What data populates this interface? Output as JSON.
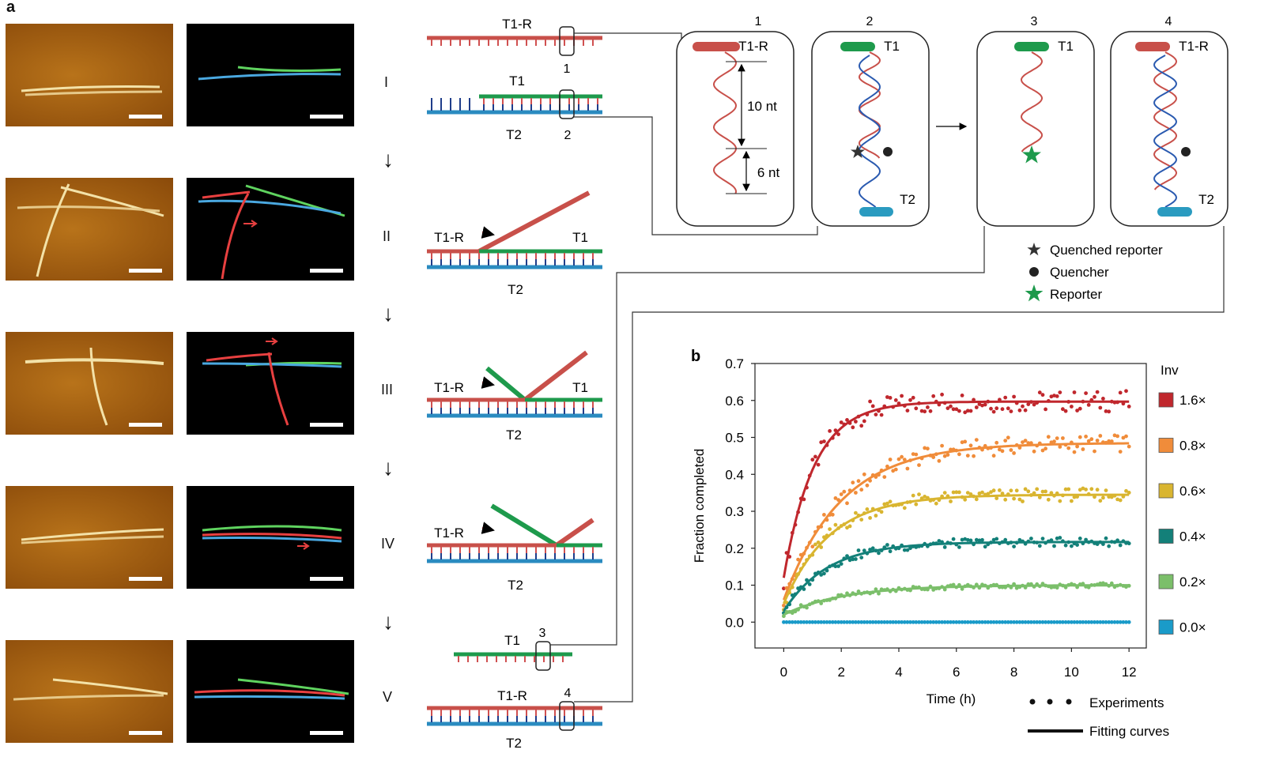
{
  "panel_a_label": "a",
  "panel_b_label": "b",
  "steps": [
    "I",
    "II",
    "III",
    "IV",
    "V"
  ],
  "strands": {
    "t1r": "T1-R",
    "t1": "T1",
    "t2": "T2"
  },
  "boxes": {
    "b1": "1",
    "b2": "2",
    "b3": "3",
    "b4": "4"
  },
  "box_labels": {
    "box1_strand": "T1-R",
    "box1_dim_top": "10 nt",
    "box1_dim_bottom": "6 nt",
    "box2_top": "T1",
    "box2_bottom": "T2",
    "box3_top": "T1",
    "box4_top": "T1-R",
    "box4_bottom": "T2"
  },
  "legend_a": {
    "quenched": "Quenched reporter",
    "quencher": "Quencher",
    "reporter": "Reporter"
  },
  "colors": {
    "red": "#c8504a",
    "green": "#1e9a4c",
    "blue": "#2a8bc0",
    "tick": "#1f3d8a"
  },
  "chart_data": {
    "type": "scatter",
    "title": "",
    "xlabel": "Time (h)",
    "ylabel": "Fraction completed",
    "xlim": [
      -1,
      12.6
    ],
    "ylim": [
      -0.07,
      0.7
    ],
    "xticks": [
      0,
      2,
      4,
      6,
      8,
      10,
      12
    ],
    "yticks": [
      0.0,
      0.1,
      0.2,
      0.3,
      0.4,
      0.5,
      0.6,
      0.7
    ],
    "ytick_labels": [
      "0.0",
      "0.1",
      "0.2",
      "0.3",
      "0.4",
      "0.5",
      "0.6",
      "0.7"
    ],
    "legend_title": "Inv",
    "legend_experiments": "Experiments",
    "legend_fits": "Fitting curves",
    "series": [
      {
        "name": "1.6×",
        "color": "#c0272d",
        "plateau": 0.597,
        "start": 0.12,
        "rate": 0.95
      },
      {
        "name": "0.8×",
        "color": "#f08c3a",
        "plateau": 0.485,
        "start": 0.06,
        "rate": 0.5
      },
      {
        "name": "0.6×",
        "color": "#d9b530",
        "plateau": 0.345,
        "start": 0.05,
        "rate": 0.62
      },
      {
        "name": "0.4×",
        "color": "#138079",
        "plateau": 0.217,
        "start": 0.03,
        "rate": 0.65
      },
      {
        "name": "0.2×",
        "color": "#7bbf6a",
        "plateau": 0.1,
        "start": 0.02,
        "rate": 0.48
      },
      {
        "name": "0.0×",
        "color": "#1a9bc9",
        "plateau": 0.0,
        "start": 0.0,
        "rate": 1.0
      }
    ]
  }
}
